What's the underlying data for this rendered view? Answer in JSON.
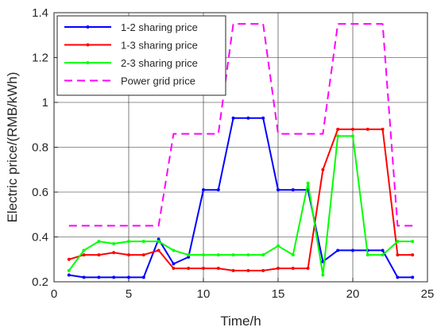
{
  "chart_data": {
    "type": "line",
    "title": "",
    "xlabel": "Time/h",
    "ylabel": "Electric price/(RMB/kWh)",
    "xlim": [
      0,
      25
    ],
    "ylim": [
      0.2,
      1.4
    ],
    "xticks": [
      0,
      5,
      10,
      15,
      20,
      25
    ],
    "xtick_labels": [
      "0",
      "5",
      "10",
      "15",
      "20",
      "25"
    ],
    "yticks": [
      0.2,
      0.4,
      0.6,
      0.8,
      1.0,
      1.2,
      1.4
    ],
    "ytick_labels": [
      "0.2",
      "0.4",
      "0.6",
      "0.8",
      "1",
      "1.2",
      "1.4"
    ],
    "grid": true,
    "legend_position": "top-left",
    "series": [
      {
        "name": "1-2 sharing price",
        "color": "#0000ff",
        "style": "solid",
        "marker": "dot",
        "x": [
          1,
          2,
          3,
          4,
          5,
          6,
          7,
          8,
          9,
          10,
          11,
          12,
          13,
          14,
          15,
          16,
          17,
          18,
          19,
          20,
          21,
          22,
          23,
          24
        ],
        "y": [
          0.23,
          0.22,
          0.22,
          0.22,
          0.22,
          0.22,
          0.39,
          0.28,
          0.31,
          0.61,
          0.61,
          0.93,
          0.93,
          0.93,
          0.61,
          0.61,
          0.61,
          0.29,
          0.34,
          0.34,
          0.34,
          0.34,
          0.22,
          0.22
        ]
      },
      {
        "name": "1-3 sharing price",
        "color": "#ff0000",
        "style": "solid",
        "marker": "dot",
        "x": [
          1,
          2,
          3,
          4,
          5,
          6,
          7,
          8,
          9,
          10,
          11,
          12,
          13,
          14,
          15,
          16,
          17,
          18,
          19,
          20,
          21,
          22,
          23,
          24
        ],
        "y": [
          0.3,
          0.32,
          0.32,
          0.33,
          0.32,
          0.32,
          0.34,
          0.26,
          0.26,
          0.26,
          0.26,
          0.25,
          0.25,
          0.25,
          0.26,
          0.26,
          0.26,
          0.7,
          0.88,
          0.88,
          0.88,
          0.88,
          0.32,
          0.32
        ]
      },
      {
        "name": "2-3 sharing price",
        "color": "#00ff00",
        "style": "solid",
        "marker": "dot",
        "x": [
          1,
          2,
          3,
          4,
          5,
          6,
          7,
          8,
          9,
          10,
          11,
          12,
          13,
          14,
          15,
          16,
          17,
          18,
          19,
          20,
          21,
          22,
          23,
          24
        ],
        "y": [
          0.25,
          0.34,
          0.38,
          0.37,
          0.38,
          0.38,
          0.38,
          0.34,
          0.32,
          0.32,
          0.32,
          0.32,
          0.32,
          0.32,
          0.36,
          0.32,
          0.64,
          0.23,
          0.85,
          0.85,
          0.32,
          0.32,
          0.38,
          0.38
        ]
      },
      {
        "name": "Power grid price",
        "color": "#ff00ff",
        "style": "dashed",
        "marker": "none",
        "x": [
          1,
          7,
          8,
          11,
          12,
          14,
          15,
          18,
          19,
          22,
          23,
          24
        ],
        "y": [
          0.45,
          0.45,
          0.86,
          0.86,
          1.35,
          1.35,
          0.86,
          0.86,
          1.35,
          1.35,
          0.45,
          0.45
        ]
      }
    ]
  }
}
